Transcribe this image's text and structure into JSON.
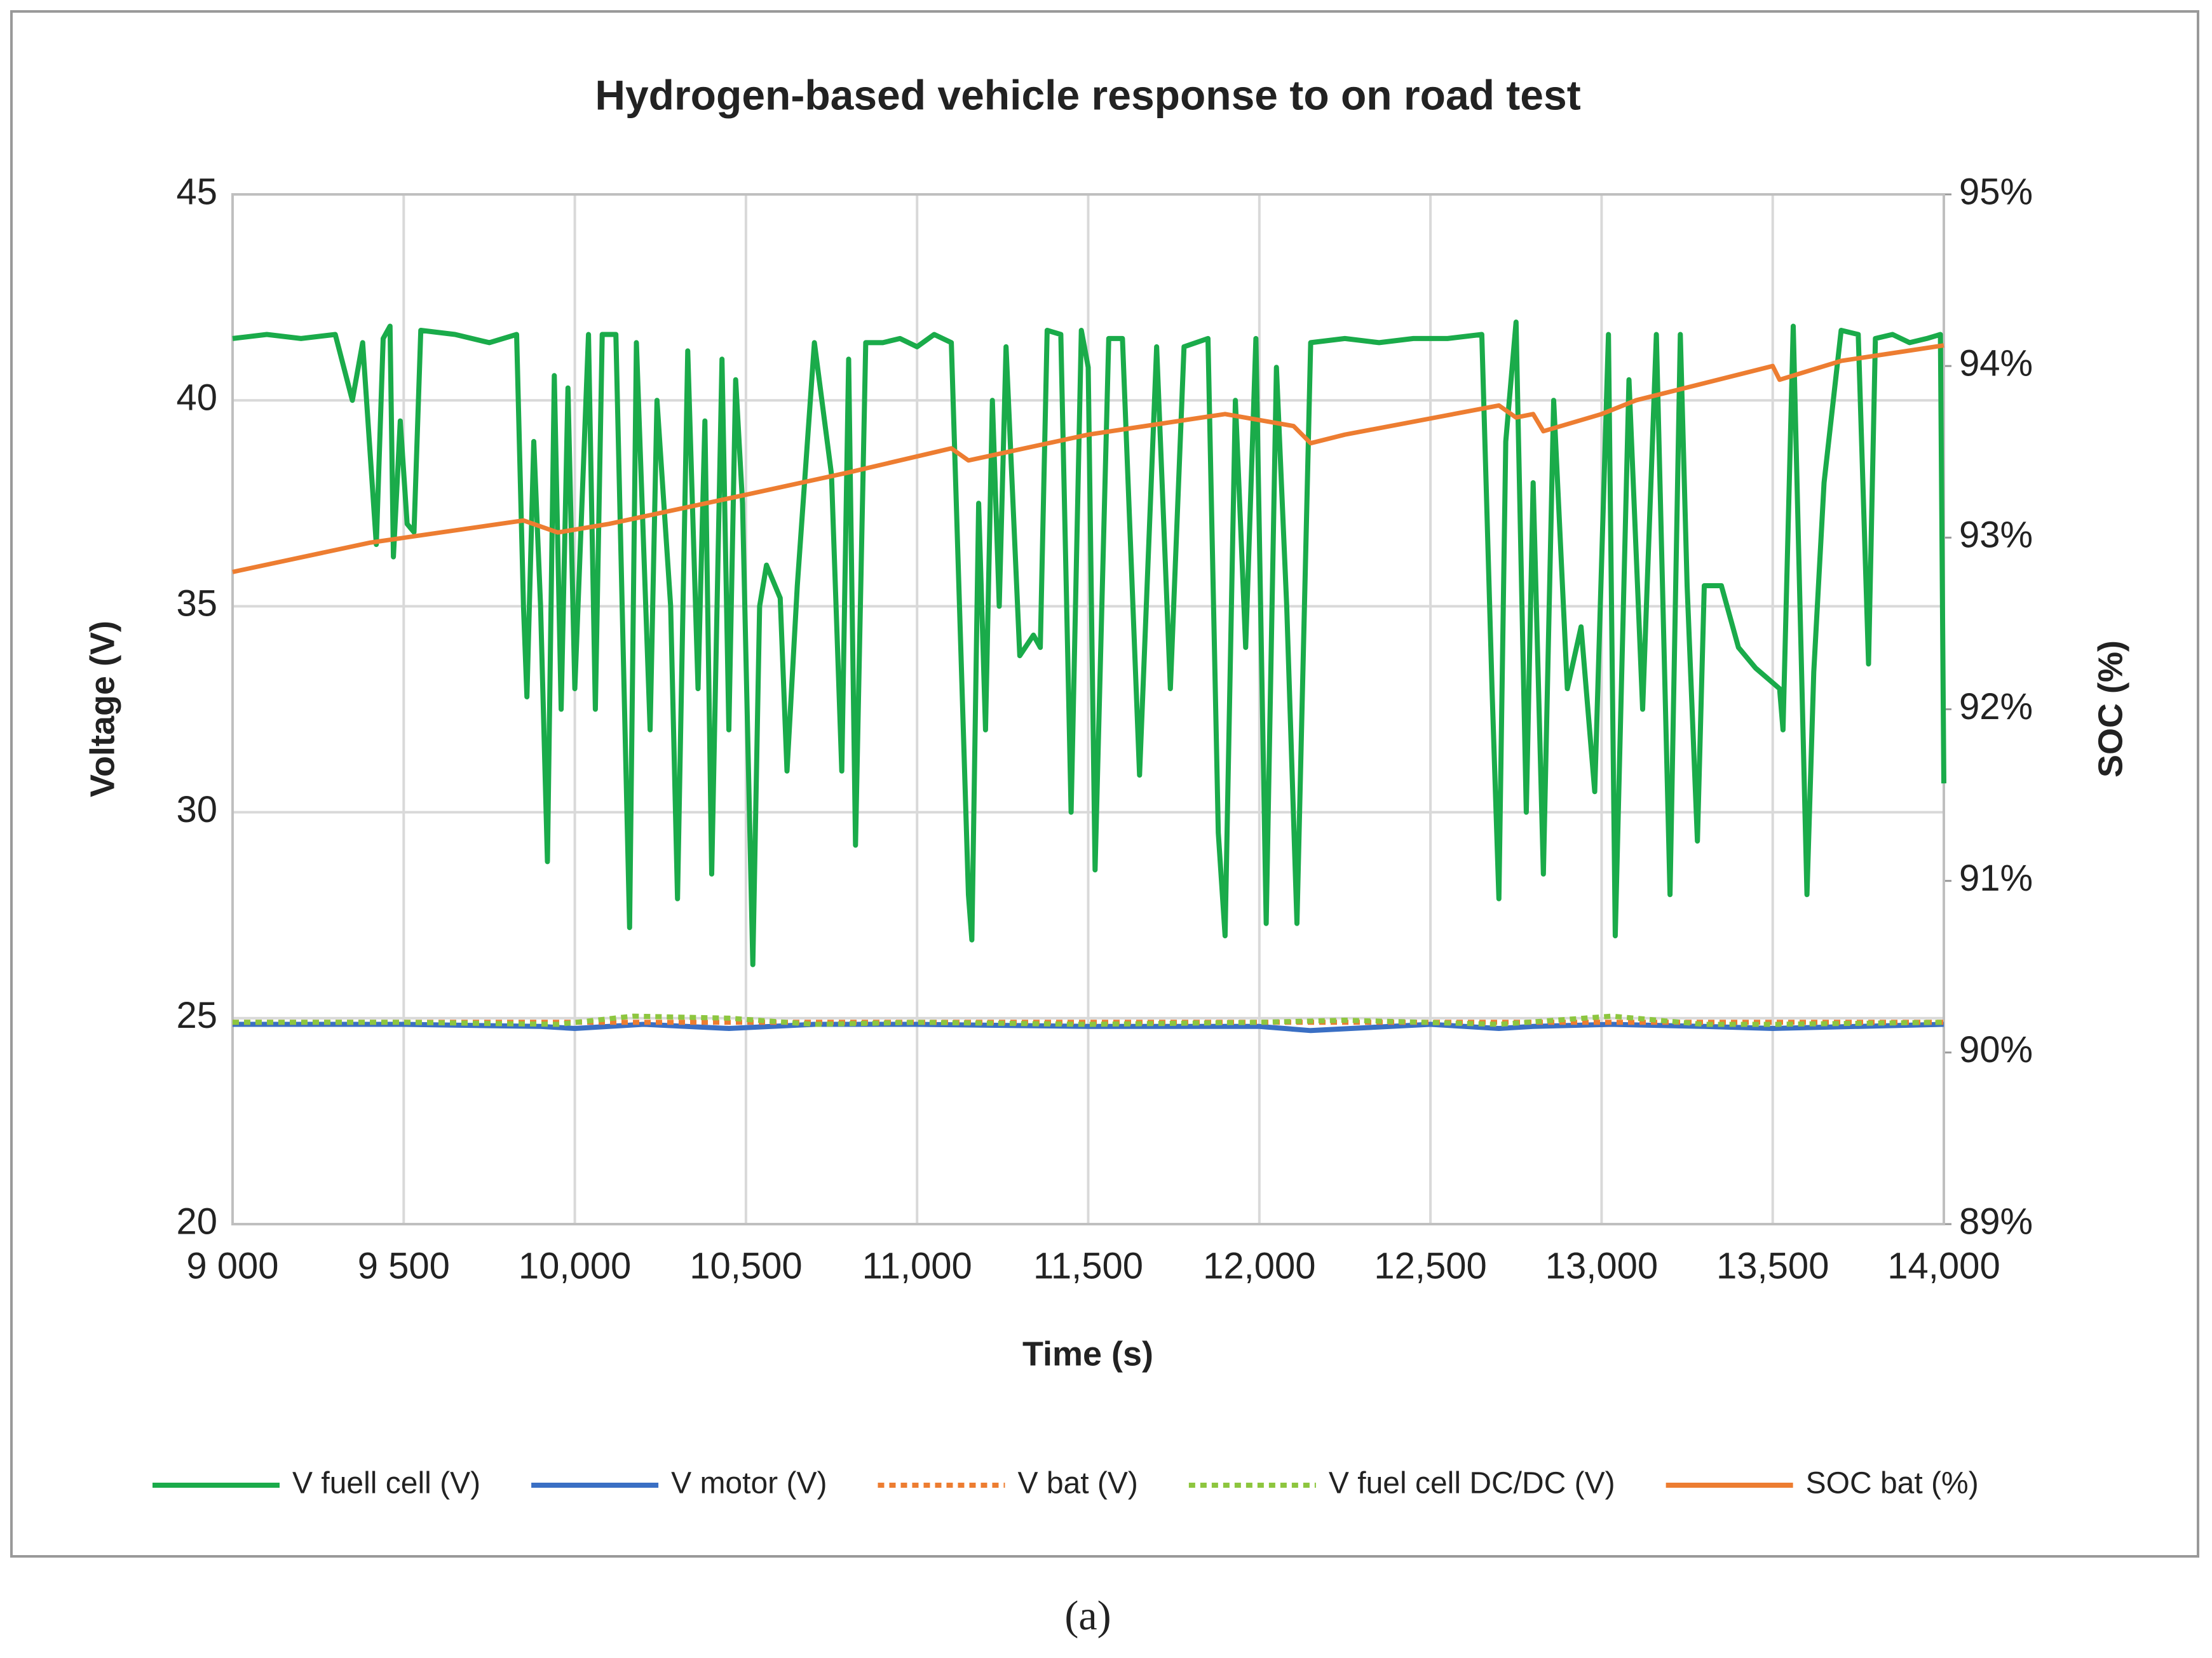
{
  "chart_data": {
    "type": "line",
    "title": "Hydrogen-based  vehicle response to on road test",
    "x_label": "Time (s)",
    "y_label": "Voltage (V)",
    "y2_label": "SOC (%)",
    "caption": "(a)",
    "grid": true,
    "legend": "bottom",
    "xlim": [
      9000,
      14000
    ],
    "xticks": [
      {
        "value": 9000,
        "label": "9 000"
      },
      {
        "value": 9500,
        "label": "9 500"
      },
      {
        "value": 10000,
        "label": "10,000"
      },
      {
        "value": 10500,
        "label": "10,500"
      },
      {
        "value": 11000,
        "label": "11,000"
      },
      {
        "value": 11500,
        "label": "11,500"
      },
      {
        "value": 12000,
        "label": "12,000"
      },
      {
        "value": 12500,
        "label": "12,500"
      },
      {
        "value": 13000,
        "label": "13,000"
      },
      {
        "value": 13500,
        "label": "13,500"
      },
      {
        "value": 14000,
        "label": "14,000"
      }
    ],
    "ylim": [
      20,
      45
    ],
    "yticks": [
      20,
      25,
      30,
      35,
      40,
      45
    ],
    "y2lim": [
      89,
      95
    ],
    "y2ticks": [
      {
        "value": 89,
        "label": "89%"
      },
      {
        "value": 90,
        "label": "90%"
      },
      {
        "value": 91,
        "label": "91%"
      },
      {
        "value": 92,
        "label": "92%"
      },
      {
        "value": 93,
        "label": "93%"
      },
      {
        "value": 94,
        "label": "94%"
      },
      {
        "value": 95,
        "label": "95%"
      }
    ],
    "series": [
      {
        "name": "V fuell cell (V)",
        "color": "#1aab4a",
        "style": "solid",
        "x": [
          9000,
          9100,
          9200,
          9300,
          9350,
          9380,
          9420,
          9440,
          9460,
          9470,
          9490,
          9510,
          9530,
          9550,
          9650,
          9750,
          9830,
          9850,
          9860,
          9880,
          9900,
          9920,
          9940,
          9960,
          9980,
          10000,
          10040,
          10060,
          10080,
          10120,
          10160,
          10180,
          10220,
          10240,
          10280,
          10300,
          10330,
          10360,
          10380,
          10400,
          10430,
          10450,
          10470,
          10490,
          10520,
          10540,
          10560,
          10600,
          10620,
          10650,
          10700,
          10750,
          10780,
          10800,
          10820,
          10850,
          10900,
          10950,
          11000,
          11050,
          11100,
          11150,
          11160,
          11180,
          11200,
          11220,
          11240,
          11260,
          11300,
          11340,
          11360,
          11380,
          11420,
          11450,
          11480,
          11500,
          11520,
          11560,
          11600,
          11650,
          11700,
          11740,
          11780,
          11850,
          11880,
          11900,
          11930,
          11960,
          11990,
          12020,
          12050,
          12080,
          12110,
          12150,
          12250,
          12350,
          12450,
          12550,
          12650,
          12680,
          12700,
          12720,
          12750,
          12780,
          12800,
          12830,
          12860,
          12900,
          12940,
          12980,
          13020,
          13040,
          13080,
          13120,
          13160,
          13200,
          13230,
          13250,
          13280,
          13300,
          13350,
          13400,
          13450,
          13520,
          13530,
          13560,
          13600,
          13620,
          13650,
          13700,
          13750,
          13780,
          13800,
          13850,
          13900,
          13950,
          13990,
          14000
        ],
        "values": [
          41.5,
          41.6,
          41.5,
          41.6,
          40,
          41.4,
          36.5,
          41.5,
          41.8,
          36.2,
          39.5,
          37,
          36.8,
          41.7,
          41.6,
          41.4,
          41.6,
          35,
          32.8,
          39,
          35,
          28.8,
          40.6,
          32.5,
          40.3,
          33,
          41.6,
          32.5,
          41.6,
          41.6,
          27.2,
          41.4,
          32,
          40,
          35,
          27.9,
          41.2,
          33,
          39.5,
          28.5,
          41,
          32,
          40.5,
          37.5,
          26.3,
          35,
          36,
          35.2,
          31,
          35.5,
          41.4,
          38.2,
          31,
          41,
          29.2,
          41.4,
          41.4,
          41.5,
          41.3,
          41.6,
          41.4,
          28,
          26.9,
          37.5,
          32,
          40,
          35,
          41.3,
          33.8,
          34.3,
          34,
          41.7,
          41.6,
          30,
          41.7,
          40.8,
          28.6,
          41.5,
          41.5,
          30.9,
          41.3,
          33,
          41.3,
          41.5,
          29.5,
          27,
          40,
          34,
          41.5,
          27.3,
          40.8,
          35,
          27.3,
          41.4,
          41.5,
          41.4,
          41.5,
          41.5,
          41.6,
          33,
          27.9,
          39,
          41.9,
          30,
          38,
          28.5,
          40,
          33,
          34.5,
          30.5,
          41.6,
          27,
          40.5,
          32.5,
          41.6,
          28,
          41.6,
          35.5,
          29.3,
          35.5,
          35.5,
          34,
          33.5,
          33,
          32,
          41.8,
          28,
          33.4,
          38,
          41.7,
          41.6,
          33.6,
          41.5,
          41.6,
          41.4,
          41.5,
          41.6,
          30.7
        ]
      },
      {
        "name": "V motor (V)",
        "color": "#3a6fc4",
        "style": "solid",
        "x": [
          9000,
          9500,
          9900,
          10000,
          10200,
          10450,
          10700,
          11000,
          11500,
          12000,
          12150,
          12500,
          12700,
          12800,
          13030,
          13300,
          13500,
          14000
        ],
        "values": [
          24.85,
          24.85,
          24.8,
          24.75,
          24.85,
          24.75,
          24.85,
          24.85,
          24.8,
          24.8,
          24.7,
          24.85,
          24.75,
          24.8,
          24.85,
          24.8,
          24.75,
          24.85
        ]
      },
      {
        "name": "V bat (V)",
        "color": "#ed7d31",
        "style": "dotted",
        "x": [
          9000,
          9500,
          10000,
          10500,
          11000,
          11500,
          12000,
          12500,
          13000,
          13500,
          14000
        ],
        "values": [
          24.9,
          24.9,
          24.9,
          24.9,
          24.9,
          24.9,
          24.9,
          24.9,
          24.9,
          24.9,
          24.9
        ]
      },
      {
        "name": "V fuel cell DC/DC (V)",
        "color": "#8dc63f",
        "style": "dotted",
        "x": [
          9000,
          9500,
          9950,
          10170,
          10450,
          10700,
          11000,
          11500,
          12000,
          12250,
          12700,
          13030,
          13300,
          13500,
          14000
        ],
        "values": [
          24.9,
          24.9,
          24.85,
          25.05,
          25.0,
          24.85,
          24.9,
          24.85,
          24.9,
          24.95,
          24.85,
          25.05,
          24.85,
          24.85,
          24.9
        ]
      },
      {
        "name": "SOC bat (%)",
        "color": "#ed7d31",
        "style": "solid",
        "axis": "y2",
        "x": [
          9000,
          9400,
          9850,
          9950,
          10100,
          10500,
          10800,
          11100,
          11150,
          11500,
          11900,
          12100,
          12150,
          12250,
          12700,
          12750,
          12800,
          12830,
          13000,
          13100,
          13500,
          13520,
          13700,
          14000
        ],
        "values": [
          92.8,
          92.97,
          93.1,
          93.03,
          93.08,
          93.25,
          93.38,
          93.52,
          93.45,
          93.6,
          93.72,
          93.65,
          93.55,
          93.6,
          93.77,
          93.7,
          93.72,
          93.62,
          93.72,
          93.8,
          94.0,
          93.92,
          94.03,
          94.12
        ]
      }
    ]
  }
}
